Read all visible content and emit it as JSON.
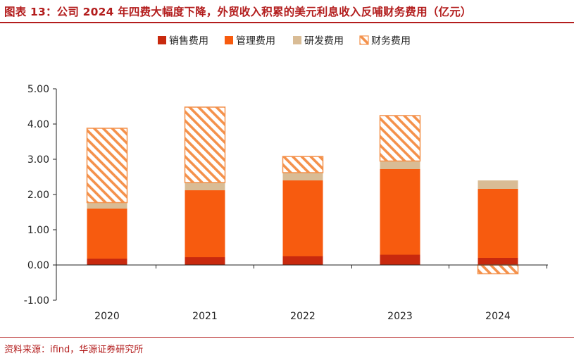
{
  "header": {
    "title": "图表 13：公司 2024 年四费大幅度下降，外贸收入积累的美元利息收入反哺财务费用（亿元）"
  },
  "footer": {
    "source": "资料来源：ifind，华源证券研究所"
  },
  "colors": {
    "accent": "#b31d1d",
    "sales": "#c8290e",
    "admin": "#f75b0f",
    "rnd": "#d9bc95",
    "finance": "#f4914b"
  },
  "chart_data": {
    "type": "bar",
    "stacked": true,
    "categories": [
      "2020",
      "2021",
      "2022",
      "2023",
      "2024"
    ],
    "series": [
      {
        "name": "销售费用",
        "values": [
          0.18,
          0.22,
          0.25,
          0.29,
          0.2
        ]
      },
      {
        "name": "管理费用",
        "values": [
          1.42,
          1.9,
          2.15,
          2.43,
          1.96
        ]
      },
      {
        "name": "研发费用",
        "values": [
          0.17,
          0.22,
          0.22,
          0.23,
          0.24
        ]
      },
      {
        "name": "财务费用",
        "values": [
          2.11,
          2.14,
          0.46,
          1.29,
          -0.25
        ]
      }
    ],
    "yticks": [
      "5.00",
      "4.00",
      "3.00",
      "2.00",
      "1.00",
      "0.00",
      "-1.00"
    ],
    "ylim": [
      -1,
      5
    ],
    "title": "",
    "xlabel": "",
    "ylabel": "",
    "legend_position": "top-center",
    "grid": false
  }
}
